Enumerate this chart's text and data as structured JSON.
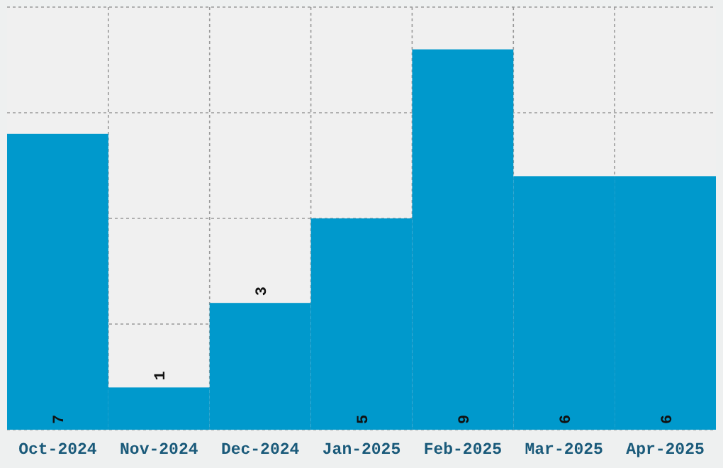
{
  "chart_data": {
    "type": "bar",
    "categories": [
      "Oct-2024",
      "Nov-2024",
      "Dec-2024",
      "Jan-2025",
      "Feb-2025",
      "Mar-2025",
      "Apr-2025"
    ],
    "values": [
      7,
      1,
      3,
      5,
      9,
      6,
      6
    ],
    "color": "#0099cc",
    "ylim": [
      0,
      10
    ],
    "yticks": [
      {
        "value": 0,
        "label": null
      },
      {
        "value": 2.5,
        "label": null
      },
      {
        "value": 5,
        "label": null
      },
      {
        "value": 7.5,
        "label": null
      },
      {
        "value": 10,
        "label": null
      }
    ],
    "tick_labels": "x",
    "grid": true,
    "data_labels": true
  }
}
